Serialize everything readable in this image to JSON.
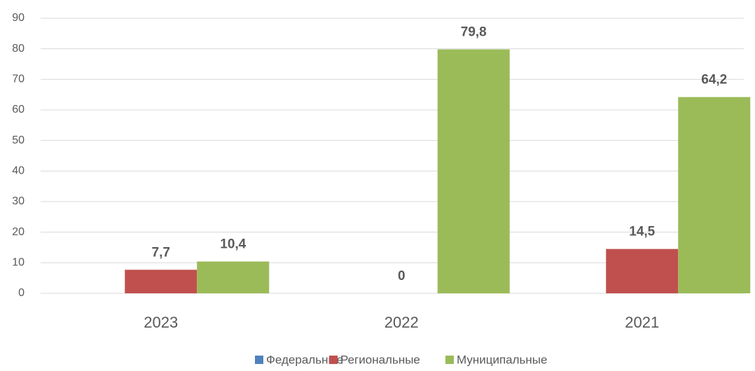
{
  "chart_data": {
    "type": "bar",
    "categories": [
      "2023",
      "2022",
      "2021"
    ],
    "series": [
      {
        "name": "Федеральные",
        "color": "#4f81bd",
        "values": [
          null,
          null,
          null
        ],
        "value_labels": [
          null,
          null,
          null
        ]
      },
      {
        "name": "Региональные",
        "color": "#c0504d",
        "values": [
          7.7,
          0,
          14.5
        ],
        "value_labels": [
          "7,7",
          "0",
          "14,5"
        ]
      },
      {
        "name": "Муниципальные",
        "color": "#9bbb59",
        "values": [
          10.4,
          79.8,
          64.2
        ],
        "value_labels": [
          "10,4",
          "79,8",
          "64,2"
        ]
      }
    ],
    "ylim": [
      0,
      90
    ],
    "yticks": [
      0,
      10,
      20,
      30,
      40,
      50,
      60,
      70,
      80,
      90
    ],
    "grid": true,
    "legend": "bottom"
  }
}
